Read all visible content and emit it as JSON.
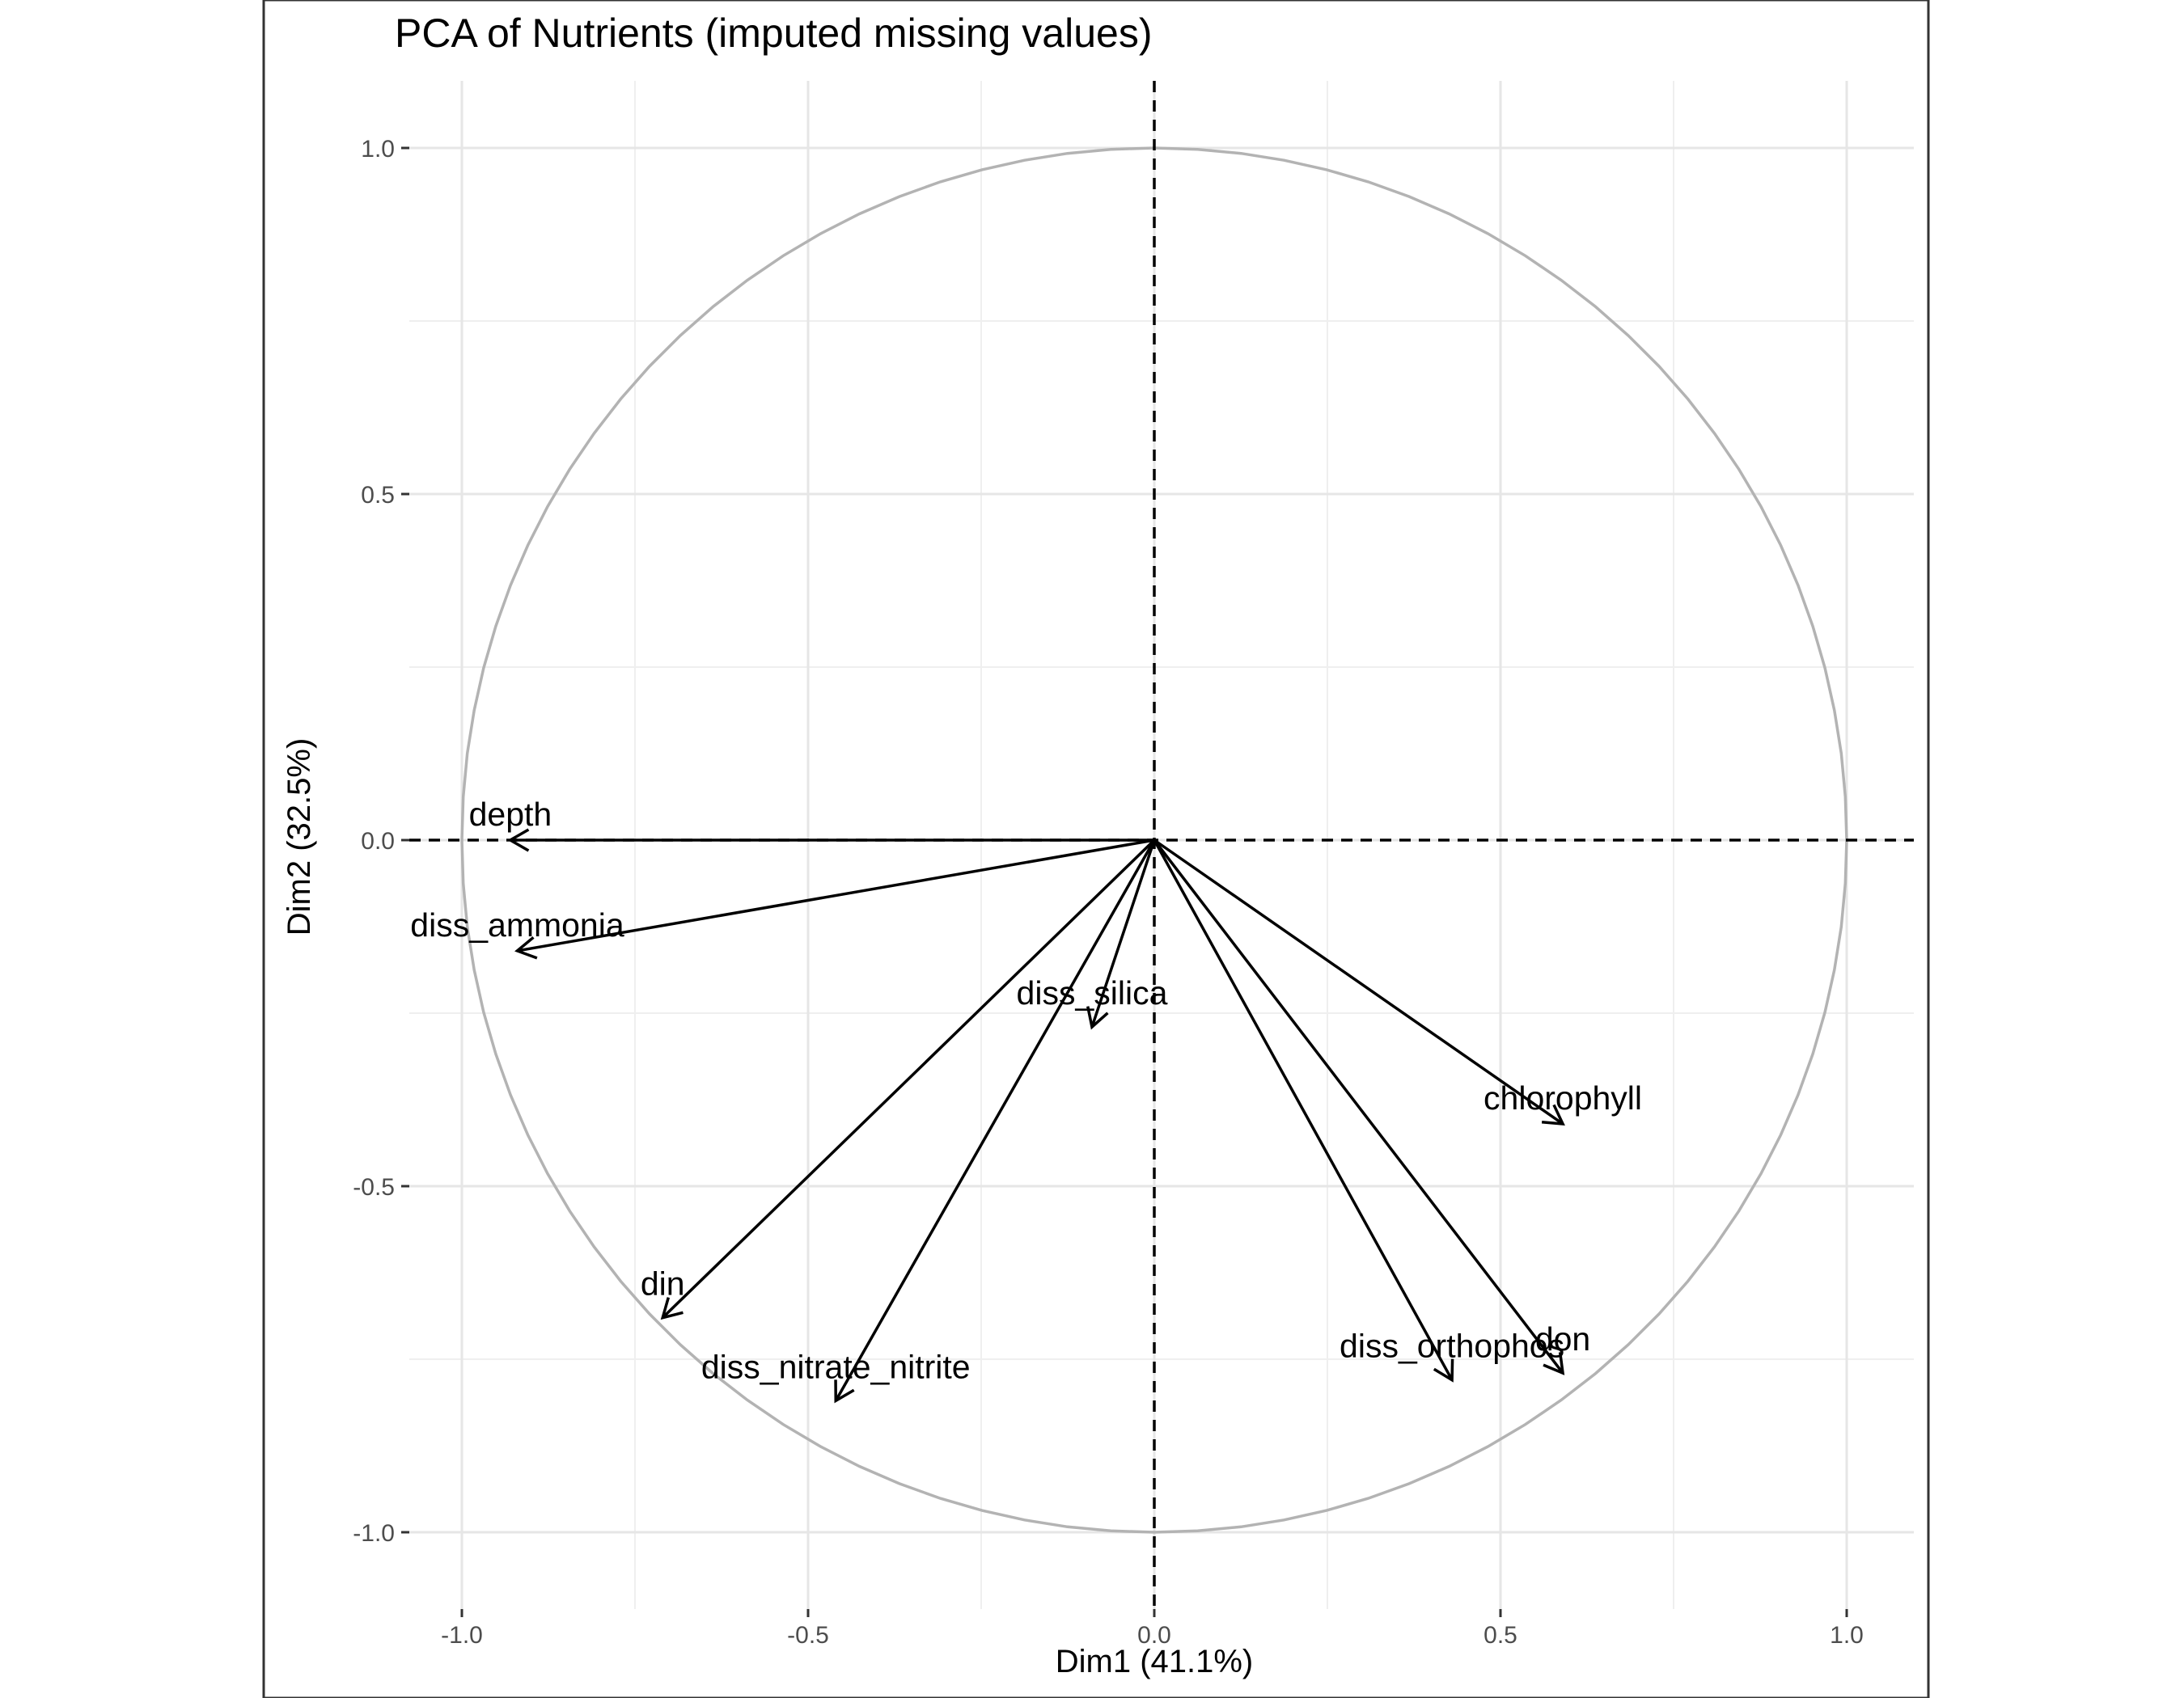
{
  "chart_data": {
    "type": "scatter",
    "subtype": "pca-variable-correlation-circle",
    "title": "PCA of Nutrients (imputed missing values)",
    "xlabel": "Dim1 (41.1%)",
    "ylabel": "Dim2 (32.5%)",
    "xlim": [
      -1.1,
      1.1
    ],
    "ylim": [
      -1.1,
      1.1
    ],
    "x_ticks": [
      -1.0,
      -0.5,
      0.0,
      0.5,
      1.0
    ],
    "y_ticks": [
      -1.0,
      -0.5,
      0.0,
      0.5,
      1.0
    ],
    "x_tick_labels": [
      "-1.0",
      "-0.5",
      "0.0",
      "0.5",
      "1.0"
    ],
    "y_tick_labels": [
      "-1.0",
      "-0.5",
      "0.0",
      "0.5",
      "1.0"
    ],
    "grid": true,
    "unit_circle": true,
    "reference_lines": "dashed lines at x=0 and y=0",
    "variables": [
      {
        "name": "depth",
        "x": -0.93,
        "y": 0.0
      },
      {
        "name": "diss_ammonia",
        "x": -0.92,
        "y": -0.16
      },
      {
        "name": "diss_silica",
        "x": -0.09,
        "y": -0.27
      },
      {
        "name": "din",
        "x": -0.71,
        "y": -0.69
      },
      {
        "name": "diss_nitrate_nitrite",
        "x": -0.46,
        "y": -0.81
      },
      {
        "name": "chlorophyll",
        "x": 0.59,
        "y": -0.41
      },
      {
        "name": "diss_orthophos",
        "x": 0.43,
        "y": -0.78
      },
      {
        "name": "don",
        "x": 0.59,
        "y": -0.77
      }
    ]
  }
}
